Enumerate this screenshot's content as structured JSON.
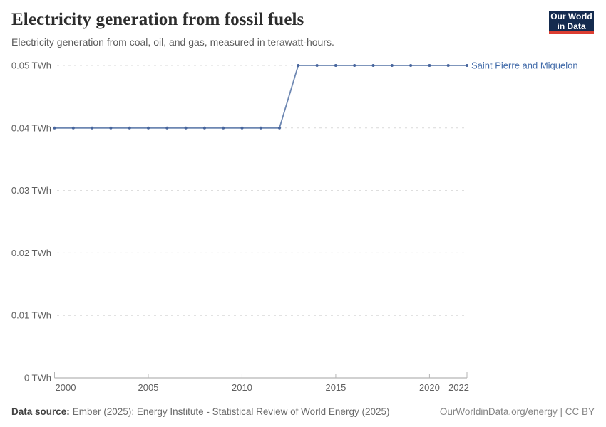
{
  "logo": {
    "line1": "Our World",
    "line2": "in Data"
  },
  "chart_data": {
    "type": "line",
    "title": "Electricity generation from fossil fuels",
    "subtitle": "Electricity generation from coal, oil, and gas, measured in terawatt-hours.",
    "unit": "TWh",
    "xlim": [
      2000,
      2022
    ],
    "ylim": [
      0,
      0.05
    ],
    "grid": true,
    "legend_position": "end-of-line",
    "x_ticks": [
      2000,
      2005,
      2010,
      2015,
      2020,
      2022
    ],
    "y_ticks": [
      {
        "value": 0,
        "label": "0 TWh"
      },
      {
        "value": 0.01,
        "label": "0.01 TWh"
      },
      {
        "value": 0.02,
        "label": "0.02 TWh"
      },
      {
        "value": 0.03,
        "label": "0.03 TWh"
      },
      {
        "value": 0.04,
        "label": "0.04 TWh"
      },
      {
        "value": 0.05,
        "label": "0.05 TWh"
      }
    ],
    "series": [
      {
        "name": "Saint Pierre and Miquelon",
        "color": "#6d87b2",
        "dot_color": "#47659d",
        "label_color": "#3f69a8",
        "x": [
          2000,
          2001,
          2002,
          2003,
          2004,
          2005,
          2006,
          2007,
          2008,
          2009,
          2010,
          2011,
          2012,
          2013,
          2014,
          2015,
          2016,
          2017,
          2018,
          2019,
          2020,
          2021,
          2022
        ],
        "values": [
          0.04,
          0.04,
          0.04,
          0.04,
          0.04,
          0.04,
          0.04,
          0.04,
          0.04,
          0.04,
          0.04,
          0.04,
          0.04,
          0.05,
          0.05,
          0.05,
          0.05,
          0.05,
          0.05,
          0.05,
          0.05,
          0.05,
          0.05
        ]
      }
    ],
    "palette": {
      "grid": "#d9d9d9",
      "axis": "#a3a3a3",
      "tick_mark": "#b5b5b5",
      "tick_text": "#5f5f5f"
    }
  },
  "footer": {
    "source_label": "Data source:",
    "source_text": "Ember (2025); Energy Institute - Statistical Review of World Energy (2025)",
    "credit": "OurWorldinData.org/energy | CC BY"
  }
}
